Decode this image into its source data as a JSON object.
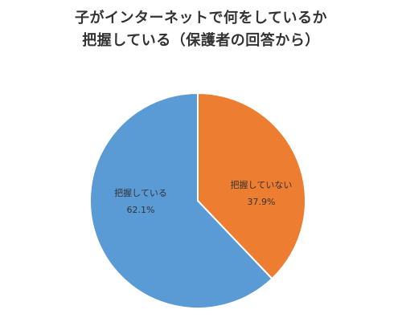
{
  "chart_data": {
    "type": "pie",
    "title_lines": [
      "子がインターネットで何をしているか",
      "把握している（保護者の回答から）"
    ],
    "slices": [
      {
        "label": "把握していない",
        "value_label": "37.9%",
        "value": 37.9,
        "color": "#ED7D31"
      },
      {
        "label": "把握している",
        "value_label": "62.1%",
        "value": 62.1,
        "color": "#5B9BD5"
      }
    ]
  }
}
